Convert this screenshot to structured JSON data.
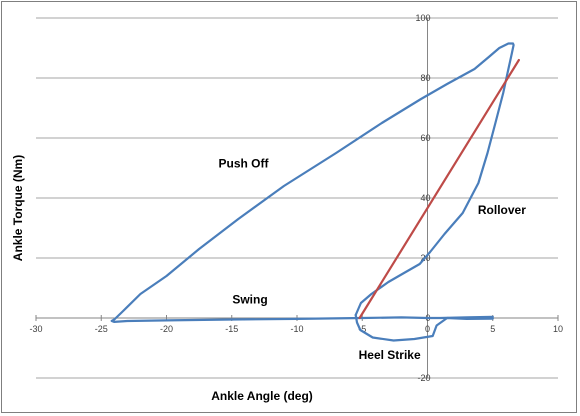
{
  "chart_data": {
    "type": "scatter",
    "xlabel": "Ankle Angle (deg)",
    "ylabel": "Ankle Torque (Nm)",
    "xlim": [
      -30,
      10
    ],
    "ylim": [
      -20,
      100
    ],
    "xticks": [
      -30,
      -25,
      -20,
      -15,
      -10,
      -5,
      0,
      5,
      10
    ],
    "yticks": [
      -20,
      0,
      20,
      40,
      60,
      80,
      100
    ],
    "grid": "horizontal",
    "legend": "none",
    "colors": {
      "loop": "#4a7ebb",
      "fit": "#be4b48",
      "grid": "#868686",
      "frame": "#7f7f7f"
    },
    "series": [
      {
        "type": "line",
        "color": "#4a7ebb",
        "x": [
          -5.5,
          -5.1,
          -4.3,
          -3,
          -1.8,
          -0.6,
          0.2,
          1.3,
          2.7,
          3.9,
          4.6,
          5.2,
          5.8,
          6.2,
          6.45,
          6.6,
          6.55,
          6.2,
          5.5,
          4.7,
          3.6,
          1.5,
          -0.5,
          -3.5,
          -7,
          -11,
          -14.5,
          -17.5,
          -20,
          -22,
          -23.4,
          -24,
          -24.2,
          -24,
          -23,
          -20,
          -15,
          -10,
          -5,
          -2,
          0,
          1,
          3,
          5
        ],
        "y": [
          1,
          5,
          8,
          12,
          15,
          18,
          22,
          28,
          35,
          45,
          55,
          65,
          75,
          83,
          88,
          91,
          91.5,
          91.5,
          90,
          87,
          83,
          78,
          73,
          65,
          55,
          44,
          33,
          23,
          14,
          8,
          2,
          -0.5,
          -1,
          -1.3,
          -1,
          -0.8,
          -0.5,
          -0.3,
          0,
          0.2,
          0,
          0,
          0.2,
          0.4
        ]
      },
      {
        "type": "line",
        "color": "#4a7ebb",
        "x": [
          -5.5,
          -5.4,
          -5.15,
          -4.2,
          -2.6,
          -1,
          0.4,
          0.7,
          1.5,
          3,
          5
        ],
        "y": [
          1,
          -1.5,
          -4,
          -6.5,
          -7.5,
          -7,
          -6,
          -2.5,
          0,
          -0.3,
          -0.2
        ]
      },
      {
        "type": "line",
        "color": "#be4b48",
        "x": [
          -5.2,
          7
        ],
        "y": [
          0,
          86
        ]
      }
    ],
    "annotations": [
      {
        "text": "Push Off",
        "x": -14.1,
        "y": 50.2
      },
      {
        "text": "Rollover",
        "x": 5.7,
        "y": 34.6
      },
      {
        "text": "Swing",
        "x": -13.6,
        "y": 4.9
      },
      {
        "text": "Heel Strike",
        "x": -2.9,
        "y": -13.7
      }
    ]
  }
}
